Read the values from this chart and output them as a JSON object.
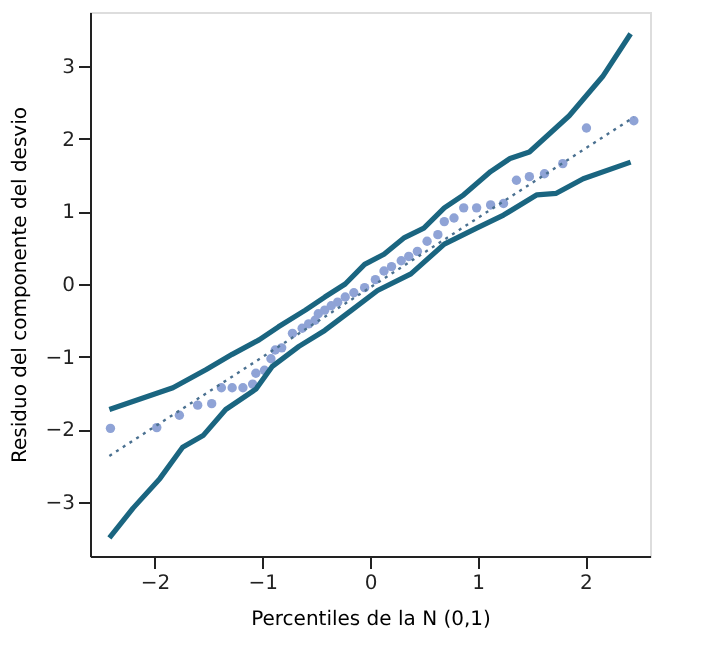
{
  "chart_data": {
    "type": "scatter",
    "xlabel": "Percentiles de la N (0,1)",
    "ylabel": "Residuo del componente del desvio",
    "xlim": [
      -2.6,
      2.6
    ],
    "ylim": [
      -3.75,
      3.75
    ],
    "xticks": [
      -2,
      -1,
      0,
      1,
      2
    ],
    "yticks": [
      -3,
      -2,
      -1,
      0,
      1,
      2,
      3
    ],
    "grid": false,
    "series": [
      {
        "color": "#8fa3d6",
        "marker": "circle",
        "x": [
          -2.41,
          -1.98,
          -1.77,
          -1.6,
          -1.47,
          -1.38,
          -1.28,
          -1.18,
          -1.09,
          -1.06,
          -0.98,
          -0.92,
          -0.88,
          -0.82,
          -0.72,
          -0.63,
          -0.57,
          -0.51,
          -0.48,
          -0.42,
          -0.36,
          -0.3,
          -0.23,
          -0.15,
          -0.05,
          0.05,
          0.13,
          0.2,
          0.29,
          0.36,
          0.44,
          0.53,
          0.63,
          0.69,
          0.78,
          0.87,
          0.99,
          1.12,
          1.24,
          1.36,
          1.48,
          1.62,
          1.79,
          2.01,
          2.45
        ],
        "values": [
          -1.99,
          -1.98,
          -1.81,
          -1.67,
          -1.65,
          -1.43,
          -1.43,
          -1.43,
          -1.38,
          -1.23,
          -1.19,
          -1.03,
          -0.91,
          -0.88,
          -0.68,
          -0.61,
          -0.55,
          -0.5,
          -0.41,
          -0.36,
          -0.3,
          -0.25,
          -0.18,
          -0.12,
          -0.05,
          0.06,
          0.18,
          0.24,
          0.32,
          0.38,
          0.45,
          0.59,
          0.68,
          0.86,
          0.91,
          1.05,
          1.05,
          1.09,
          1.11,
          1.43,
          1.48,
          1.52,
          1.66,
          2.15,
          2.25
        ]
      },
      {
        "type": "line",
        "color": "#1a6580",
        "line_style": "solid",
        "x": [
          -2.42,
          -1.83,
          -1.52,
          -1.28,
          -1.03,
          -0.85,
          -0.6,
          -0.42,
          -0.23,
          -0.05,
          0.13,
          0.32,
          0.5,
          0.69,
          0.87,
          1.12,
          1.3,
          1.48,
          1.85,
          2.16,
          2.42
        ],
        "values": [
          -1.73,
          -1.43,
          -1.18,
          -0.97,
          -0.77,
          -0.59,
          -0.36,
          -0.18,
          0.0,
          0.27,
          0.41,
          0.64,
          0.77,
          1.05,
          1.23,
          1.55,
          1.73,
          1.82,
          2.32,
          2.86,
          3.45
        ]
      },
      {
        "type": "line",
        "color": "#1a6580",
        "line_style": "solid",
        "x": [
          -2.42,
          -2.2,
          -1.95,
          -1.74,
          -1.55,
          -1.34,
          -1.06,
          -0.91,
          -0.66,
          -0.42,
          -0.17,
          0.07,
          0.38,
          0.69,
          0.99,
          1.24,
          1.55,
          1.73,
          1.98,
          2.42
        ],
        "values": [
          -3.5,
          -3.09,
          -2.68,
          -2.25,
          -2.09,
          -1.73,
          -1.45,
          -1.14,
          -0.86,
          -0.64,
          -0.36,
          -0.09,
          0.14,
          0.55,
          0.77,
          0.95,
          1.23,
          1.25,
          1.45,
          1.68
        ]
      },
      {
        "type": "line",
        "color": "#4a7090",
        "line_style": "dotted",
        "x": [
          -2.42,
          2.45
        ],
        "values": [
          -2.37,
          2.3
        ]
      }
    ]
  }
}
